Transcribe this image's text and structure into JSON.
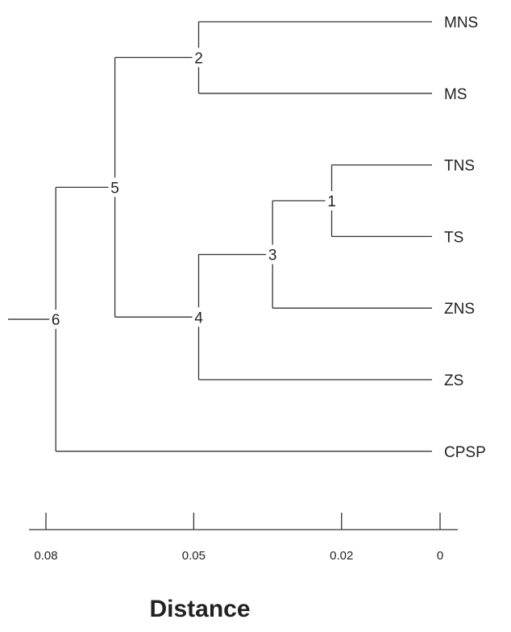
{
  "chart_data": {
    "type": "dendrogram",
    "xlabel": "Distance",
    "x_axis_ticks": [
      0.08,
      0.05,
      0.02,
      0
    ],
    "x_axis_tick_labels": [
      "0.08",
      "0.05",
      "0.02",
      "0"
    ],
    "leaves": [
      "MNS",
      "MS",
      "TNS",
      "TS",
      "ZNS",
      "ZS",
      "CPSP"
    ],
    "nodes": [
      {
        "id": "1",
        "height": 0.022,
        "children": [
          "TNS",
          "TS"
        ]
      },
      {
        "id": "2",
        "height": 0.049,
        "children": [
          "MNS",
          "MS"
        ]
      },
      {
        "id": "3",
        "height": 0.034,
        "children": [
          "1",
          "ZNS"
        ]
      },
      {
        "id": "4",
        "height": 0.049,
        "children": [
          "3",
          "ZS"
        ]
      },
      {
        "id": "5",
        "height": 0.066,
        "children": [
          "2",
          "4"
        ]
      },
      {
        "id": "6",
        "height": 0.078,
        "children": [
          "5",
          "CPSP"
        ]
      }
    ]
  }
}
